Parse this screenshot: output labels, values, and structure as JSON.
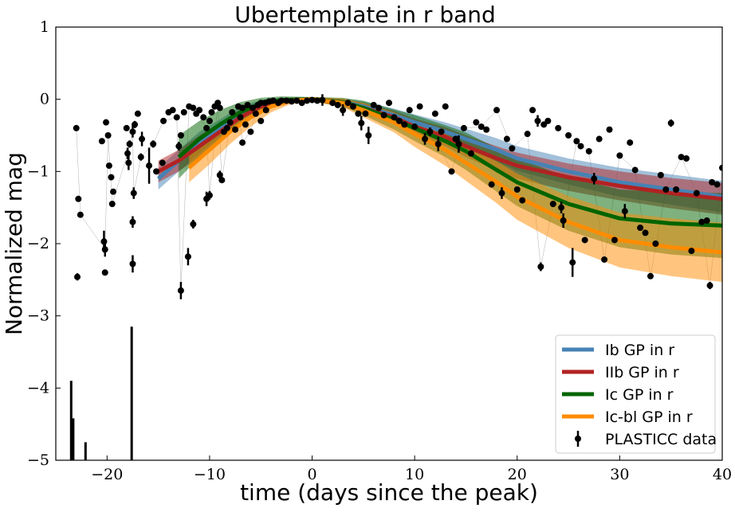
{
  "chart_data": {
    "type": "line",
    "title": "Ubertemplate in r band",
    "xlabel": "time (days since the peak)",
    "ylabel": "Normalized mag",
    "xlim": [
      -25,
      40
    ],
    "ylim": [
      -5,
      1
    ],
    "x_ticks": [
      -20,
      -10,
      0,
      10,
      20,
      30,
      40
    ],
    "y_ticks": [
      1,
      0,
      -1,
      -2,
      -3,
      -4,
      -5
    ],
    "x_tick_labels": [
      "−20",
      "−10",
      "0",
      "10",
      "20",
      "30",
      "40"
    ],
    "y_tick_labels": [
      "1",
      "0",
      "−1",
      "−2",
      "−3",
      "−4",
      "−5"
    ],
    "legend_position": "lower-right",
    "series": [
      {
        "name": "Ib GP in r",
        "color": "#4682b4",
        "x": [
          -15,
          -13,
          -11,
          -9,
          -7,
          -5,
          -3,
          0,
          3,
          5,
          8,
          10,
          13,
          15,
          18,
          20,
          25,
          30,
          35,
          40
        ],
        "y": [
          -1.1,
          -0.85,
          -0.6,
          -0.4,
          -0.2,
          -0.07,
          -0.02,
          0.0,
          -0.04,
          -0.1,
          -0.22,
          -0.32,
          -0.45,
          -0.55,
          -0.7,
          -0.82,
          -1.0,
          -1.15,
          -1.25,
          -1.35
        ],
        "lower": [
          -1.25,
          -1.0,
          -0.75,
          -0.52,
          -0.3,
          -0.13,
          -0.06,
          -0.03,
          -0.09,
          -0.17,
          -0.31,
          -0.43,
          -0.58,
          -0.69,
          -0.86,
          -0.99,
          -1.18,
          -1.35,
          -1.46,
          -1.57
        ],
        "upper": [
          -0.95,
          -0.7,
          -0.45,
          -0.28,
          -0.1,
          -0.01,
          0.02,
          0.03,
          0.01,
          -0.03,
          -0.13,
          -0.21,
          -0.32,
          -0.41,
          -0.54,
          -0.65,
          -0.82,
          -0.95,
          -1.04,
          -1.13
        ]
      },
      {
        "name": "IIb GP in r",
        "color": "#b22222",
        "x": [
          -15,
          -13,
          -11,
          -9,
          -7,
          -5,
          -3,
          0,
          3,
          5,
          8,
          10,
          13,
          15,
          18,
          20,
          25,
          30,
          35,
          40
        ],
        "y": [
          -1.0,
          -0.85,
          -0.65,
          -0.45,
          -0.25,
          -0.1,
          -0.02,
          0.0,
          -0.05,
          -0.12,
          -0.25,
          -0.38,
          -0.52,
          -0.65,
          -0.82,
          -0.92,
          -1.08,
          -1.2,
          -1.3,
          -1.38
        ],
        "lower": [
          -1.15,
          -1.0,
          -0.8,
          -0.58,
          -0.36,
          -0.17,
          -0.06,
          -0.03,
          -0.1,
          -0.19,
          -0.34,
          -0.49,
          -0.65,
          -0.8,
          -0.99,
          -1.1,
          -1.27,
          -1.4,
          -1.51,
          -1.6
        ],
        "upper": [
          -0.85,
          -0.7,
          -0.5,
          -0.32,
          -0.14,
          -0.03,
          0.02,
          0.03,
          0.0,
          -0.05,
          -0.16,
          -0.27,
          -0.39,
          -0.5,
          -0.65,
          -0.74,
          -0.89,
          -1.0,
          -1.09,
          -1.16
        ]
      },
      {
        "name": "Ic GP in r",
        "color": "#006400",
        "x": [
          -13,
          -11,
          -9,
          -7,
          -5,
          -3,
          0,
          3,
          5,
          8,
          10,
          13,
          15,
          18,
          20,
          25,
          30,
          35,
          40
        ],
        "y": [
          -0.8,
          -0.55,
          -0.35,
          -0.18,
          -0.06,
          -0.01,
          0.0,
          -0.04,
          -0.12,
          -0.28,
          -0.4,
          -0.58,
          -0.72,
          -0.98,
          -1.15,
          -1.45,
          -1.65,
          -1.72,
          -1.75
        ],
        "lower": [
          -1.1,
          -0.8,
          -0.55,
          -0.32,
          -0.14,
          -0.06,
          -0.03,
          -0.1,
          -0.22,
          -0.42,
          -0.58,
          -0.8,
          -0.98,
          -1.28,
          -1.48,
          -1.82,
          -2.05,
          -2.15,
          -2.2
        ],
        "upper": [
          -0.5,
          -0.3,
          -0.15,
          -0.04,
          0.02,
          0.04,
          0.03,
          0.02,
          -0.02,
          -0.14,
          -0.22,
          -0.36,
          -0.46,
          -0.68,
          -0.82,
          -1.08,
          -1.25,
          -1.29,
          -1.3
        ]
      },
      {
        "name": "Ic-bl GP in r",
        "color": "#ff8c00",
        "x": [
          -12,
          -10,
          -8,
          -6,
          -4,
          -2,
          0,
          3,
          5,
          8,
          10,
          13,
          15,
          18,
          20,
          25,
          30,
          35,
          40
        ],
        "y": [
          -0.95,
          -0.7,
          -0.45,
          -0.25,
          -0.1,
          -0.02,
          0.0,
          -0.05,
          -0.15,
          -0.32,
          -0.48,
          -0.7,
          -0.88,
          -1.15,
          -1.35,
          -1.7,
          -1.95,
          -2.05,
          -2.12
        ],
        "lower": [
          -1.15,
          -0.9,
          -0.62,
          -0.38,
          -0.18,
          -0.06,
          -0.03,
          -0.11,
          -0.25,
          -0.46,
          -0.66,
          -0.92,
          -1.13,
          -1.44,
          -1.67,
          -2.06,
          -2.33,
          -2.45,
          -2.53
        ],
        "upper": [
          -0.75,
          -0.5,
          -0.28,
          -0.12,
          -0.02,
          0.02,
          0.03,
          0.01,
          -0.05,
          -0.18,
          -0.3,
          -0.48,
          -0.63,
          -0.86,
          -1.03,
          -1.34,
          -1.57,
          -1.65,
          -1.71
        ]
      }
    ],
    "observations": {
      "name": "PLASTICC data",
      "color": "#000000",
      "points": [
        [
          -23.0,
          -0.4,
          0.04
        ],
        [
          -22.8,
          -1.38,
          0.04
        ],
        [
          -22.6,
          -1.6,
          0.04
        ],
        [
          -22.9,
          -2.46,
          0.05
        ],
        [
          -20.5,
          -0.58,
          0.04
        ],
        [
          -20.1,
          -0.32,
          0.04
        ],
        [
          -19.9,
          -0.5,
          0.04
        ],
        [
          -19.8,
          -0.92,
          0.04
        ],
        [
          -19.6,
          -1.08,
          0.04
        ],
        [
          -19.4,
          -1.28,
          0.04
        ],
        [
          -19.5,
          -1.45,
          0.04
        ],
        [
          -20.3,
          -1.97,
          0.15
        ],
        [
          -20.2,
          -2.08,
          0.1
        ],
        [
          -20.2,
          -2.4,
          0.04
        ],
        [
          -18.1,
          -0.4,
          0.04
        ],
        [
          -18.0,
          -0.75,
          0.08
        ],
        [
          -17.9,
          -0.88,
          0.1
        ],
        [
          -17.8,
          -0.62,
          0.05
        ],
        [
          -17.5,
          -0.45,
          0.08
        ],
        [
          -17.3,
          -0.35,
          0.05
        ],
        [
          -17.0,
          -0.2,
          0.04
        ],
        [
          -16.6,
          -0.55,
          0.1
        ],
        [
          -16.7,
          -0.8,
          0.05
        ],
        [
          -17.4,
          -1.3,
          0.08
        ],
        [
          -17.5,
          -1.7,
          0.08
        ],
        [
          -17.5,
          -2.28,
          0.12
        ],
        [
          -15.9,
          -0.92,
          0.25
        ],
        [
          -15.5,
          -0.62,
          0.05
        ],
        [
          -15.2,
          -1.0,
          0.04
        ],
        [
          -14.6,
          -0.88,
          0.04
        ],
        [
          -14.5,
          -0.3,
          0.04
        ],
        [
          -14.0,
          -0.18,
          0.04
        ],
        [
          -13.6,
          -0.15,
          0.04
        ],
        [
          -13.2,
          -0.25,
          0.04
        ],
        [
          -13.0,
          -0.65,
          0.06
        ],
        [
          -12.8,
          -0.5,
          0.04
        ],
        [
          -12.5,
          -0.18,
          0.04
        ],
        [
          -12.0,
          -0.1,
          0.04
        ],
        [
          -11.6,
          -0.12,
          0.04
        ],
        [
          -11.3,
          -0.2,
          0.04
        ],
        [
          -11.0,
          -0.15,
          0.04
        ],
        [
          -10.6,
          -0.25,
          0.04
        ],
        [
          -10.3,
          -0.4,
          0.04
        ],
        [
          -10.0,
          -0.3,
          0.04
        ],
        [
          -9.8,
          -0.18,
          0.04
        ],
        [
          -9.5,
          -0.1,
          0.04
        ],
        [
          -9.2,
          -0.05,
          0.04
        ],
        [
          -9.0,
          -0.12,
          0.04
        ],
        [
          -8.6,
          -0.45,
          0.04
        ],
        [
          -8.3,
          -0.4,
          0.04
        ],
        [
          -8.0,
          -0.32,
          0.04
        ],
        [
          -12.8,
          -2.65,
          0.12
        ],
        [
          -12.1,
          -2.18,
          0.12
        ],
        [
          -11.6,
          -1.73,
          0.06
        ],
        [
          -10.3,
          -1.38,
          0.1
        ],
        [
          -10.0,
          -1.33,
          0.06
        ],
        [
          -9.0,
          -1.05,
          0.06
        ],
        [
          -8.8,
          -1.12,
          0.04
        ],
        [
          -7.8,
          -0.18,
          0.04
        ],
        [
          -7.2,
          -0.1,
          0.04
        ],
        [
          -6.8,
          -0.12,
          0.04
        ],
        [
          -6.3,
          -0.08,
          0.04
        ],
        [
          -5.8,
          -0.12,
          0.04
        ],
        [
          -5.3,
          -0.08,
          0.04
        ],
        [
          -5.0,
          -0.05,
          0.04
        ],
        [
          -4.6,
          -0.05,
          0.04
        ],
        [
          -4.2,
          -0.03,
          0.04
        ],
        [
          -3.8,
          -0.02,
          0.04
        ],
        [
          -3.3,
          -0.05,
          0.04
        ],
        [
          -3.0,
          -0.02,
          0.04
        ],
        [
          -2.5,
          -0.02,
          0.04
        ],
        [
          -2.0,
          -0.03,
          0.04
        ],
        [
          -1.5,
          -0.02,
          0.04
        ],
        [
          -1.0,
          -0.05,
          0.04
        ],
        [
          -0.5,
          -0.02,
          0.04
        ],
        [
          0.0,
          -0.01,
          0.04
        ],
        [
          0.5,
          -0.02,
          0.04
        ],
        [
          1.0,
          -0.01,
          0.08
        ],
        [
          -7.5,
          -0.42,
          0.04
        ],
        [
          -7.0,
          -0.25,
          0.04
        ],
        [
          -6.5,
          -0.35,
          0.04
        ],
        [
          -6.0,
          -0.45,
          0.04
        ],
        [
          -5.5,
          -0.2,
          0.04
        ],
        [
          -5.0,
          -0.3,
          0.04
        ],
        [
          -4.5,
          -0.15,
          0.04
        ],
        [
          -6.8,
          -0.6,
          0.04
        ],
        [
          2.0,
          -0.05,
          0.04
        ],
        [
          2.5,
          -0.08,
          0.04
        ],
        [
          3.0,
          -0.15,
          0.08
        ],
        [
          3.5,
          -0.05,
          0.04
        ],
        [
          4.0,
          -0.1,
          0.04
        ],
        [
          4.5,
          -0.2,
          0.04
        ],
        [
          4.8,
          -0.33,
          0.1
        ],
        [
          5.2,
          -0.2,
          0.04
        ],
        [
          5.5,
          -0.5,
          0.12
        ],
        [
          6.0,
          -0.08,
          0.04
        ],
        [
          6.5,
          -0.12,
          0.04
        ],
        [
          7.0,
          -0.22,
          0.04
        ],
        [
          7.5,
          -0.05,
          0.04
        ],
        [
          8.0,
          -0.25,
          0.04
        ],
        [
          8.5,
          -0.3,
          0.04
        ],
        [
          9.0,
          -0.35,
          0.04
        ],
        [
          9.5,
          -0.15,
          0.04
        ],
        [
          10.0,
          -0.38,
          0.04
        ],
        [
          10.5,
          -0.1,
          0.04
        ],
        [
          11.0,
          -0.55,
          0.08
        ],
        [
          11.5,
          -0.45,
          0.06
        ],
        [
          12.0,
          -0.2,
          0.04
        ],
        [
          12.3,
          -0.62,
          0.1
        ],
        [
          12.6,
          -0.45,
          0.04
        ],
        [
          13.0,
          -0.1,
          0.04
        ],
        [
          13.6,
          -1.0,
          0.04
        ],
        [
          14.0,
          -0.55,
          0.04
        ],
        [
          14.3,
          -0.62,
          0.12
        ],
        [
          14.8,
          -0.4,
          0.04
        ],
        [
          15.5,
          -0.75,
          0.04
        ],
        [
          16.0,
          -0.32,
          0.04
        ],
        [
          16.5,
          -0.38,
          0.04
        ],
        [
          17.0,
          -0.42,
          0.04
        ],
        [
          17.5,
          -1.18,
          0.04
        ],
        [
          18.0,
          -0.15,
          0.04
        ],
        [
          18.5,
          -1.3,
          0.08
        ],
        [
          19.0,
          -0.55,
          0.04
        ],
        [
          19.5,
          -0.68,
          0.04
        ],
        [
          20.0,
          -1.25,
          0.04
        ],
        [
          20.5,
          -1.4,
          0.04
        ],
        [
          21.0,
          -0.48,
          0.04
        ],
        [
          21.5,
          -0.15,
          0.04
        ],
        [
          22.0,
          -0.3,
          0.08
        ],
        [
          22.3,
          -2.32,
          0.06
        ],
        [
          22.6,
          -0.35,
          0.04
        ],
        [
          23.0,
          -0.3,
          0.04
        ],
        [
          23.5,
          -1.45,
          0.04
        ],
        [
          24.0,
          -0.4,
          0.04
        ],
        [
          24.3,
          -1.5,
          0.08
        ],
        [
          24.5,
          -1.68,
          0.1
        ],
        [
          25.0,
          -0.5,
          0.04
        ],
        [
          25.4,
          -2.26,
          0.2
        ],
        [
          25.8,
          -0.58,
          0.04
        ],
        [
          26.2,
          -0.65,
          0.04
        ],
        [
          26.6,
          -1.95,
          0.04
        ],
        [
          27.0,
          -0.72,
          0.04
        ],
        [
          27.5,
          -1.1,
          0.08
        ],
        [
          28.0,
          -0.55,
          0.04
        ],
        [
          28.5,
          -2.22,
          0.04
        ],
        [
          29.0,
          -0.42,
          0.04
        ],
        [
          29.5,
          -1.95,
          0.04
        ],
        [
          30.0,
          -0.78,
          0.04
        ],
        [
          30.5,
          -1.55,
          0.1
        ],
        [
          31.0,
          -0.6,
          0.04
        ],
        [
          31.5,
          -0.98,
          0.04
        ],
        [
          32.0,
          -1.78,
          0.04
        ],
        [
          32.5,
          -1.85,
          0.04
        ],
        [
          33.0,
          -2.45,
          0.04
        ],
        [
          33.5,
          -2.0,
          0.04
        ],
        [
          34.0,
          -1.05,
          0.04
        ],
        [
          34.5,
          -1.25,
          0.04
        ],
        [
          35.0,
          -0.33,
          0.05
        ],
        [
          35.5,
          -1.25,
          0.04
        ],
        [
          36.0,
          -0.8,
          0.04
        ],
        [
          36.5,
          -0.82,
          0.04
        ],
        [
          37.0,
          -2.1,
          0.04
        ],
        [
          37.5,
          -1.3,
          0.04
        ],
        [
          38.0,
          -1.7,
          0.04
        ],
        [
          38.5,
          -1.68,
          0.04
        ],
        [
          39.0,
          -1.15,
          0.04
        ],
        [
          38.8,
          -2.58,
          0.05
        ],
        [
          39.5,
          -1.18,
          0.04
        ],
        [
          40.0,
          -0.95,
          0.04
        ]
      ],
      "low_bars": [
        [
          -23.5,
          -4.3,
          0.4
        ],
        [
          -23.3,
          -4.72,
          0.3
        ],
        [
          -22.1,
          -4.9,
          0.15
        ],
        [
          -17.6,
          -4.1,
          0.95
        ]
      ]
    }
  }
}
